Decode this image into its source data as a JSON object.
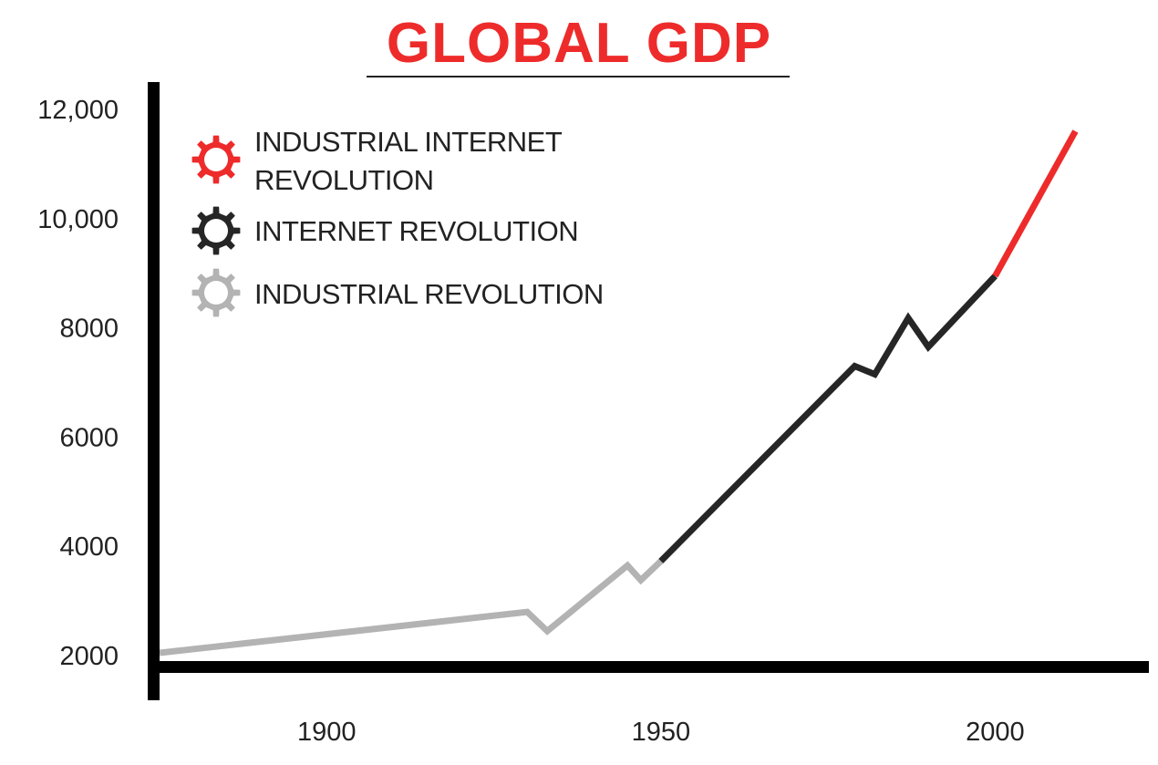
{
  "chart_data": {
    "type": "line",
    "title": "GLOBAL GDP",
    "xlabel": "",
    "ylabel": "",
    "xlim": [
      1875,
      2023
    ],
    "ylim": [
      1800,
      12500
    ],
    "x_ticks": [
      "1900",
      "1950",
      "2000"
    ],
    "y_ticks": [
      "2000",
      "4000",
      "6000",
      "8000",
      "10,000",
      "12,000"
    ],
    "x_tick_values": [
      1900,
      1950,
      2000
    ],
    "y_tick_values": [
      2000,
      4000,
      6000,
      8000,
      10000,
      12000
    ],
    "grid": false,
    "legend_position": "top-left",
    "series": [
      {
        "name": "INDUSTRIAL REVOLUTION",
        "color": "#b3b3b3",
        "icon": "gear-icon",
        "points": [
          [
            1875,
            2050
          ],
          [
            1930,
            2800
          ],
          [
            1933,
            2450
          ],
          [
            1945,
            3650
          ],
          [
            1947,
            3380
          ],
          [
            1950,
            3730
          ]
        ]
      },
      {
        "name": "INTERNET REVOLUTION",
        "color": "#262626",
        "icon": "gear-icon",
        "points": [
          [
            1950,
            3730
          ],
          [
            1979,
            7300
          ],
          [
            1982,
            7150
          ],
          [
            1987,
            8180
          ],
          [
            1990,
            7650
          ],
          [
            2000,
            8950
          ]
        ]
      },
      {
        "name": "INDUSTRIAL INTERNET REVOLUTION",
        "color": "#ee2b2b",
        "icon": "gear-icon",
        "points": [
          [
            2000,
            8950
          ],
          [
            2012,
            11600
          ]
        ]
      }
    ]
  },
  "legend": [
    {
      "lines": [
        "INDUSTRIAL INTERNET",
        "REVOLUTION"
      ],
      "color": "#ee2b2b"
    },
    {
      "lines": [
        "INTERNET REVOLUTION"
      ],
      "color": "#262626"
    },
    {
      "lines": [
        "INDUSTRIAL REVOLUTION"
      ],
      "color": "#b3b3b3"
    }
  ]
}
